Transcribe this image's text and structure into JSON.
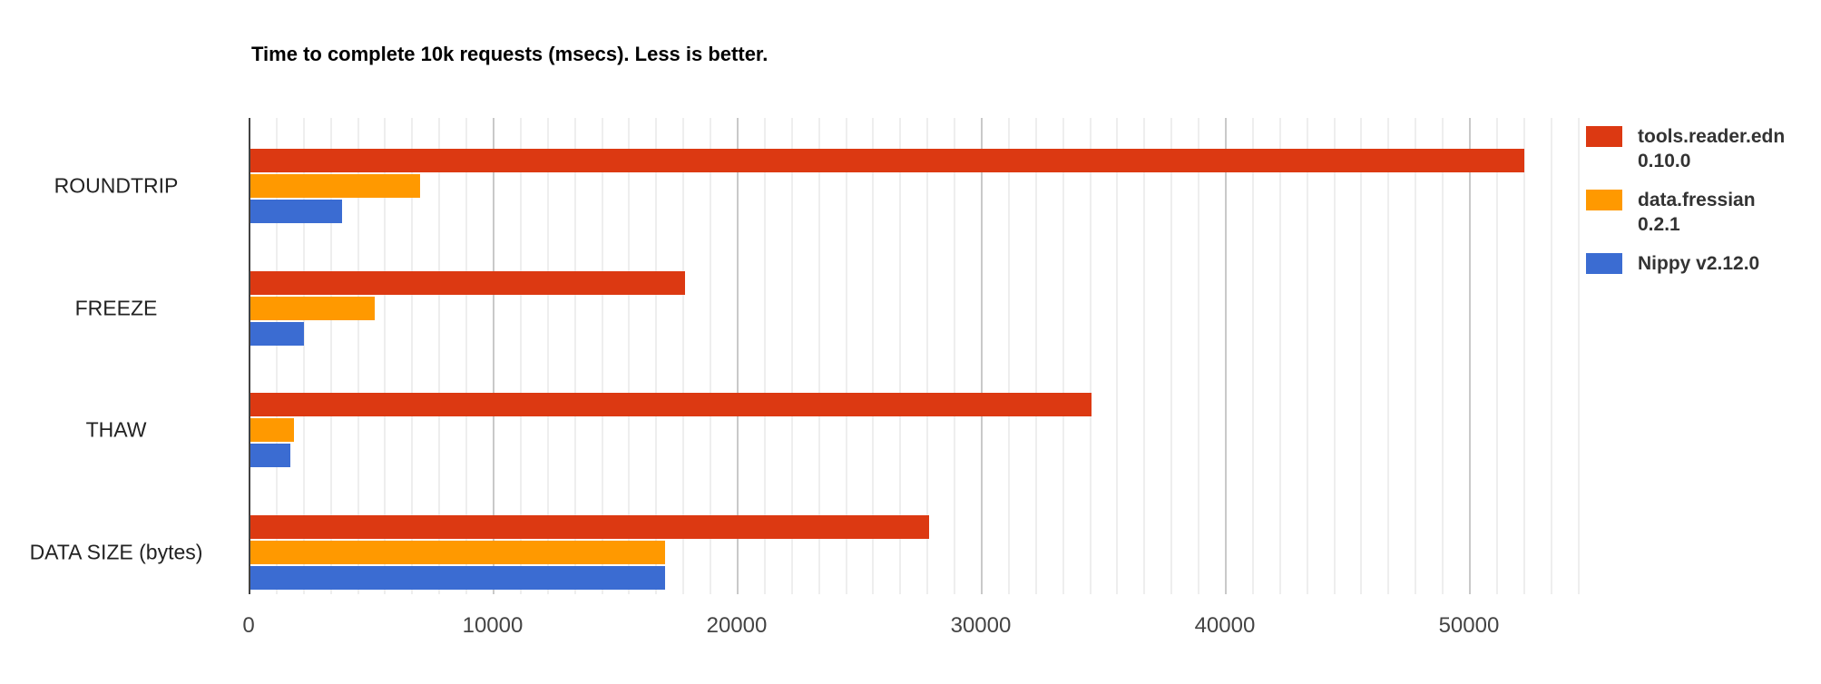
{
  "chart_data": {
    "type": "bar",
    "orientation": "horizontal",
    "title": "Time to complete 10k requests (msecs). Less is better.",
    "categories": [
      "ROUNDTRIP",
      "FREEZE",
      "THAW",
      "DATA SIZE (bytes)"
    ],
    "series": [
      {
        "name": "tools.reader.edn 0.10.0",
        "legend_lines": [
          "tools.reader.edn",
          "0.10.0"
        ],
        "color": "#dc3912",
        "values": [
          52200,
          17800,
          34450,
          27800
        ]
      },
      {
        "name": "data.fressian 0.2.1",
        "legend_lines": [
          "data.fressian",
          "0.2.1"
        ],
        "color": "#ff9900",
        "values": [
          6950,
          5100,
          1800,
          17000
        ]
      },
      {
        "name": "Nippy v2.12.0",
        "legend_lines": [
          "Nippy v2.12.0"
        ],
        "color": "#3b6cd2",
        "values": [
          3750,
          2200,
          1650,
          17000
        ]
      }
    ],
    "xlabel": "",
    "ylabel": "",
    "xlim": [
      0,
      54500
    ],
    "x_ticks": [
      0,
      10000,
      20000,
      30000,
      40000,
      50000
    ],
    "x_tick_labels": [
      "0",
      "10000",
      "20000",
      "30000",
      "40000",
      "50000"
    ],
    "minor_gridline_step": 1111.11,
    "minor_per_major": 9,
    "grid": true,
    "legend_position": "right"
  }
}
